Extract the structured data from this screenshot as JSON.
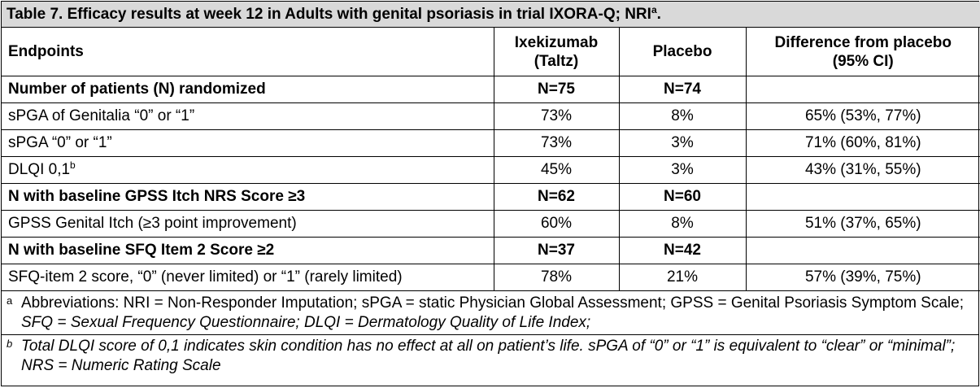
{
  "table": {
    "title": "Table 7. Efficacy results at week 12 in Adults with genital psoriasis in trial IXORA-Q; NRI",
    "title_sup": "a",
    "title_end": ".",
    "headers": {
      "endpoints": "Endpoints",
      "drug_line1": "Ixekizumab",
      "drug_line2": "(Taltz)",
      "placebo": "Placebo",
      "diff_line1": "Difference from placebo",
      "diff_line2": "(95% CI)"
    },
    "rows": [
      {
        "label": "Number of patients (N) randomized",
        "drug": "N=75",
        "placebo": "N=74",
        "diff": "",
        "sup": ""
      },
      {
        "label": "sPGA of Genitalia “0” or “1”",
        "drug": "73%",
        "placebo": "8%",
        "diff": "65% (53%, 77%)",
        "sup": ""
      },
      {
        "label": "sPGA “0” or “1”",
        "drug": "73%",
        "placebo": "3%",
        "diff": "71% (60%, 81%)",
        "sup": ""
      },
      {
        "label": "DLQI 0,1",
        "drug": "45%",
        "placebo": "3%",
        "diff": "43% (31%, 55%)",
        "sup": "b"
      },
      {
        "label": "N with baseline GPSS Itch NRS Score ≥3",
        "drug": "N=62",
        "placebo": "N=60",
        "diff": "",
        "sup": ""
      },
      {
        "label": "GPSS Genital Itch (≥3 point improvement)",
        "drug": "60%",
        "placebo": "8%",
        "diff": "51% (37%, 65%)",
        "sup": ""
      },
      {
        "label": "N with baseline SFQ Item 2 Score ≥2",
        "drug": "N=37",
        "placebo": "N=42",
        "diff": "",
        "sup": ""
      },
      {
        "label": "SFQ-item 2 score, “0” (never limited) or “1” (rarely limited)",
        "drug": "78%",
        "placebo": "21%",
        "diff": "57% (39%, 75%)",
        "sup": ""
      }
    ]
  },
  "footnotes": {
    "a_mark": "a",
    "a_text_plain": "Abbreviations: NRI = Non-Responder Imputation; sPGA = static Physician Global Assessment; GPSS = Genital Psoriasis Symptom Scale; ",
    "a_text_italic": "SFQ = Sexual Frequency Questionnaire; DLQI = Dermatology Quality of Life Index;",
    "b_mark": "b",
    "b_text": "Total DLQI score of 0,1 indicates skin condition has no effect at all on patient’s life. sPGA of “0” or “1” is equivalent to “clear” or “minimal”; NRS = Numeric Rating Scale"
  }
}
